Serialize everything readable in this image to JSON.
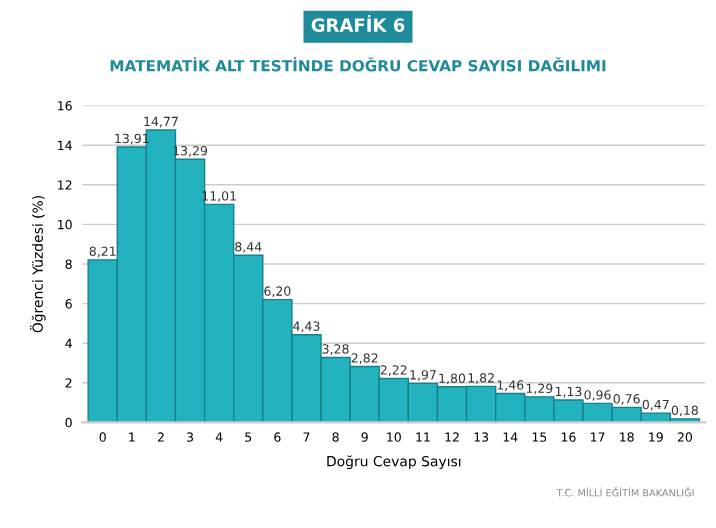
{
  "chart_data": {
    "type": "bar",
    "title": "GRAFİK 6",
    "subtitle": "MATEMATİK ALT TESTİNDE DOĞRU CEVAP SAYISI DAĞILIMI",
    "xlabel": "Doğru Cevap Sayısı",
    "ylabel": "Öğrenci Yüzdesi (%)",
    "categories": [
      "0",
      "1",
      "2",
      "3",
      "4",
      "5",
      "6",
      "7",
      "8",
      "9",
      "10",
      "11",
      "12",
      "13",
      "14",
      "15",
      "16",
      "17",
      "18",
      "19",
      "20"
    ],
    "values": [
      8.21,
      13.91,
      14.77,
      13.29,
      11.01,
      8.44,
      6.2,
      4.43,
      3.28,
      2.82,
      2.22,
      1.97,
      1.8,
      1.82,
      1.46,
      1.29,
      1.13,
      0.96,
      0.76,
      0.47,
      0.18
    ],
    "value_labels": [
      "8,21",
      "13,91",
      "14,77",
      "13,29",
      "11,01",
      "8,44",
      "6,20",
      "4,43",
      "3,28",
      "2,82",
      "2,22",
      "1,97",
      "1,80",
      "1,82",
      "1,46",
      "1,29",
      "1,13",
      "0,96",
      "0,76",
      "0,47",
      "0,18"
    ],
    "color": "#22b3bf",
    "ylim": [
      0,
      16
    ],
    "yticks": [
      0,
      2,
      4,
      6,
      8,
      10,
      12,
      14,
      16
    ],
    "grid": "y",
    "annotations": [
      "T.C. MİLLİ EĞİTİM BAKANLIĞI"
    ]
  }
}
